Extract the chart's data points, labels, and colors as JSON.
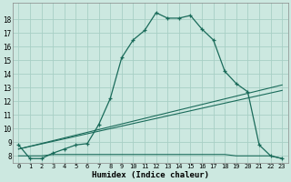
{
  "xlabel": "Humidex (Indice chaleur)",
  "background_color": "#cce8e0",
  "grid_color": "#a8cfc5",
  "line_color": "#1a6b5a",
  "xlim": [
    -0.5,
    23.5
  ],
  "ylim": [
    7.5,
    19.2
  ],
  "xticks": [
    0,
    1,
    2,
    3,
    4,
    5,
    6,
    7,
    8,
    9,
    10,
    11,
    12,
    13,
    14,
    15,
    16,
    17,
    18,
    19,
    20,
    21,
    22,
    23
  ],
  "yticks": [
    8,
    9,
    10,
    11,
    12,
    13,
    14,
    15,
    16,
    17,
    18
  ],
  "curve1_x": [
    0,
    1,
    2,
    3,
    4,
    5,
    6,
    7,
    8,
    9,
    10,
    11,
    12,
    13,
    14,
    15,
    16,
    17,
    18,
    19,
    20,
    21,
    22,
    23
  ],
  "curve1_y": [
    8.8,
    7.8,
    7.8,
    8.2,
    8.5,
    8.8,
    8.9,
    10.3,
    12.2,
    15.2,
    16.5,
    17.2,
    18.5,
    18.1,
    18.1,
    18.3,
    17.3,
    16.5,
    14.2,
    13.3,
    12.7,
    8.8,
    8.0,
    7.8
  ],
  "curve2_x": [
    0,
    1,
    2,
    3,
    4,
    5,
    6,
    7,
    8,
    9,
    10,
    11,
    12,
    13,
    14,
    15,
    16,
    17,
    18,
    19,
    20,
    21,
    22,
    23
  ],
  "curve2_y": [
    8.0,
    8.0,
    8.0,
    8.1,
    8.1,
    8.1,
    8.1,
    8.1,
    8.1,
    8.1,
    8.1,
    8.1,
    8.1,
    8.1,
    8.1,
    8.1,
    8.1,
    8.1,
    8.1,
    8.0,
    8.0,
    8.0,
    8.0,
    7.8
  ],
  "curve3_x": [
    0,
    23
  ],
  "curve3_y": [
    8.5,
    13.2
  ],
  "curve4_x": [
    0,
    23
  ],
  "curve4_y": [
    8.5,
    12.8
  ]
}
